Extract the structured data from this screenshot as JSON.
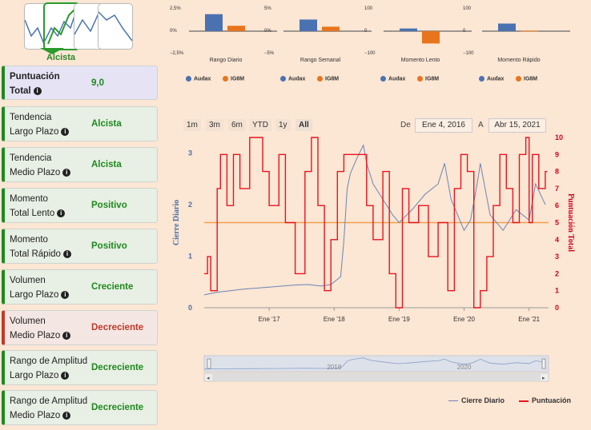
{
  "trend": {
    "label": "Alcista"
  },
  "cards": [
    {
      "l1": "Puntuación",
      "l2": "Total",
      "value": "9,0",
      "kind": "total"
    },
    {
      "l1": "Tendencia",
      "l2": "Largo Plazo",
      "value": "Alcista",
      "kind": "green"
    },
    {
      "l1": "Tendencia",
      "l2": "Medio Plazo",
      "value": "Alcista",
      "kind": "green"
    },
    {
      "l1": "Momento",
      "l2": "Total Lento",
      "value": "Positivo",
      "kind": "green"
    },
    {
      "l1": "Momento",
      "l2": "Total Rápido",
      "value": "Positivo",
      "kind": "green"
    },
    {
      "l1": "Volumen",
      "l2": "Largo Plazo",
      "value": "Creciente",
      "kind": "green"
    },
    {
      "l1": "Volumen",
      "l2": "Medio Plazo",
      "value": "Decreciente",
      "kind": "red"
    },
    {
      "l1": "Rango de Amplitud",
      "l2": "Largo Plazo",
      "value": "Decreciente",
      "kind": "green"
    },
    {
      "l1": "Rango de Amplitud",
      "l2": "Medio Plazo",
      "value": "Decreciente",
      "kind": "green"
    }
  ],
  "mini_legend": {
    "a": "Audax",
    "b": "IG8M"
  },
  "colors": {
    "audax": "#4a72b0",
    "ig8m": "#e8741d",
    "score": "#e8141e",
    "close": "#6a85b5",
    "ref": "#f0a050"
  },
  "mini_charts": [
    {
      "title": "Rango Diario",
      "ticks": [
        "2,5%",
        "0%",
        "−2,5%"
      ],
      "audax": 1.9,
      "ig8m": 0.6,
      "ymax": 2.5
    },
    {
      "title": "Rango Semanal",
      "ticks": [
        "5%",
        "0%",
        "−5%"
      ],
      "audax": 2.6,
      "ig8m": 1.0,
      "ymax": 5
    },
    {
      "title": "Momento Lento",
      "ticks": [
        "100",
        "0",
        "−100"
      ],
      "audax": 12,
      "ig8m": -55,
      "ymax": 100
    },
    {
      "title": "Momento Rápido",
      "ticks": [
        "100",
        "0",
        "−100"
      ],
      "audax": 34,
      "ig8m": 2,
      "ymax": 100
    }
  ],
  "range": {
    "buttons": [
      "1m",
      "3m",
      "6m",
      "YTD",
      "1y",
      "All"
    ],
    "active": "All",
    "from_label": "De",
    "from": "Ene 4, 2016",
    "to_label": "A",
    "to": "Abr 15, 2021"
  },
  "chart_data": {
    "type": "line",
    "y_left_label": "Cierre Diario",
    "y_right_label": "Puntuación Total",
    "y_left_ticks": [
      "0",
      "1",
      "2",
      "3"
    ],
    "y_right_ticks": [
      "0",
      "1",
      "2",
      "3",
      "4",
      "5",
      "6",
      "7",
      "8",
      "9",
      "10"
    ],
    "x_ticks": [
      "Ene '17",
      "Ene '18",
      "Ene '19",
      "Ene '20",
      "Ene '21"
    ],
    "navigator_ticks": [
      "2018",
      "2020"
    ],
    "ylim_left": [
      0,
      3.3
    ],
    "ylim_right": [
      0,
      10
    ],
    "reference_score": 5,
    "series": [
      {
        "name": "Cierre Diario",
        "x": [
          2016.0,
          2016.2,
          2016.4,
          2016.6,
          2016.8,
          2017.0,
          2017.2,
          2017.4,
          2017.6,
          2017.8,
          2017.95,
          2018.1,
          2018.15,
          2018.2,
          2018.25,
          2018.35,
          2018.45,
          2018.5,
          2018.6,
          2018.7,
          2018.8,
          2018.9,
          2019.0,
          2019.2,
          2019.4,
          2019.6,
          2019.7,
          2019.8,
          2019.9,
          2020.0,
          2020.1,
          2020.2,
          2020.25,
          2020.4,
          2020.6,
          2020.8,
          2021.0,
          2021.1,
          2021.25
        ],
        "y": [
          0.25,
          0.3,
          0.33,
          0.36,
          0.38,
          0.4,
          0.42,
          0.44,
          0.45,
          0.42,
          0.45,
          0.6,
          1.3,
          2.3,
          2.6,
          2.9,
          3.15,
          2.8,
          2.4,
          2.2,
          2.0,
          1.8,
          1.65,
          1.9,
          2.2,
          2.4,
          2.8,
          2.1,
          1.8,
          1.5,
          1.7,
          2.4,
          2.8,
          1.8,
          1.5,
          1.9,
          1.7,
          2.4,
          2.0
        ]
      },
      {
        "name": "Puntuación",
        "x": [
          2016.0,
          2016.05,
          2016.1,
          2016.2,
          2016.25,
          2016.35,
          2016.45,
          2016.55,
          2016.7,
          2016.9,
          2017.0,
          2017.15,
          2017.25,
          2017.4,
          2017.55,
          2017.65,
          2017.75,
          2017.85,
          2017.95,
          2018.05,
          2018.15,
          2018.3,
          2018.45,
          2018.5,
          2018.6,
          2018.75,
          2018.85,
          2018.95,
          2019.05,
          2019.15,
          2019.3,
          2019.45,
          2019.6,
          2019.75,
          2019.85,
          2019.95,
          2020.05,
          2020.15,
          2020.25,
          2020.35,
          2020.45,
          2020.55,
          2020.65,
          2020.75,
          2020.85,
          2020.95,
          2021.0,
          2021.05,
          2021.15,
          2021.25
        ],
        "y": [
          2,
          3,
          1,
          7,
          9,
          6,
          9,
          7,
          10,
          8,
          6,
          9,
          5,
          2,
          8,
          10,
          6,
          1,
          4,
          8,
          9,
          9,
          9,
          6,
          4,
          8,
          2,
          0,
          7,
          5,
          6,
          3,
          5,
          1,
          7,
          9,
          8,
          0,
          1,
          3,
          6,
          9,
          7,
          5,
          9,
          10,
          5,
          9,
          7,
          8
        ]
      }
    ]
  }
}
